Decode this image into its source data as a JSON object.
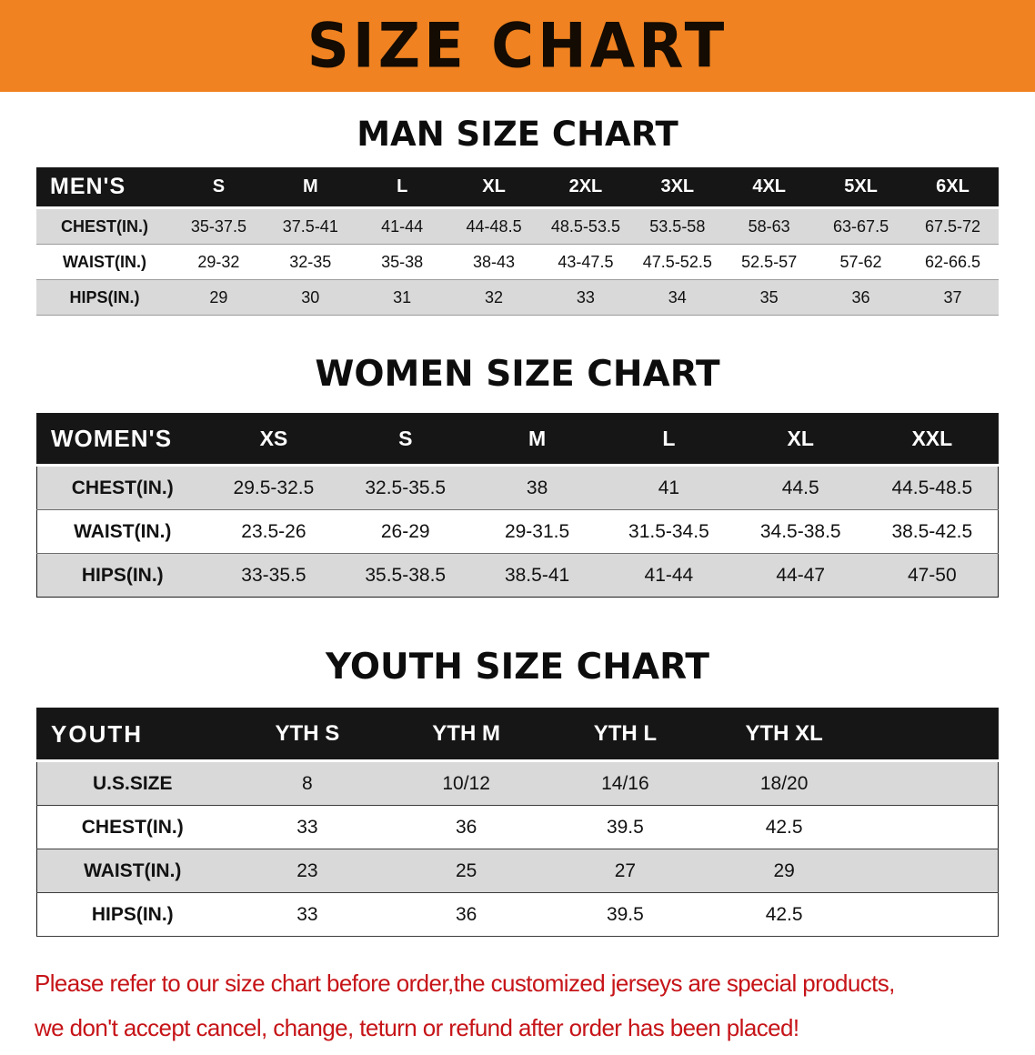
{
  "banner": {
    "title": "SIZE CHART"
  },
  "chart_data": [
    {
      "type": "table",
      "title": "MAN SIZE CHART",
      "corner_label": "MEN'S",
      "columns": [
        "S",
        "M",
        "L",
        "XL",
        "2XL",
        "3XL",
        "4XL",
        "5XL",
        "6XL"
      ],
      "rows": [
        {
          "label": "CHEST(IN.)",
          "values": [
            "35-37.5",
            "37.5-41",
            "41-44",
            "44-48.5",
            "48.5-53.5",
            "53.5-58",
            "58-63",
            "63-67.5",
            "67.5-72"
          ]
        },
        {
          "label": "WAIST(IN.)",
          "values": [
            "29-32",
            "32-35",
            "35-38",
            "38-43",
            "43-47.5",
            "47.5-52.5",
            "52.5-57",
            "57-62",
            "62-66.5"
          ]
        },
        {
          "label": "HIPS(IN.)",
          "values": [
            "29",
            "30",
            "31",
            "32",
            "33",
            "34",
            "35",
            "36",
            "37"
          ]
        }
      ]
    },
    {
      "type": "table",
      "title": "WOMEN SIZE CHART",
      "corner_label": "WOMEN'S",
      "columns": [
        "XS",
        "S",
        "M",
        "L",
        "XL",
        "XXL"
      ],
      "rows": [
        {
          "label": "CHEST(IN.)",
          "values": [
            "29.5-32.5",
            "32.5-35.5",
            "38",
            "41",
            "44.5",
            "44.5-48.5"
          ]
        },
        {
          "label": "WAIST(IN.)",
          "values": [
            "23.5-26",
            "26-29",
            "29-31.5",
            "31.5-34.5",
            "34.5-38.5",
            "38.5-42.5"
          ]
        },
        {
          "label": "HIPS(IN.)",
          "values": [
            "33-35.5",
            "35.5-38.5",
            "38.5-41",
            "41-44",
            "44-47",
            "47-50"
          ]
        }
      ]
    },
    {
      "type": "table",
      "title": "YOUTH SIZE CHART",
      "corner_label": "YOUTH",
      "columns": [
        "YTH S",
        "YTH M",
        "YTH L",
        "YTH XL"
      ],
      "rows": [
        {
          "label": "U.S.SIZE",
          "values": [
            "8",
            "10/12",
            "14/16",
            "18/20"
          ]
        },
        {
          "label": "CHEST(IN.)",
          "values": [
            "33",
            "36",
            "39.5",
            "42.5"
          ]
        },
        {
          "label": "WAIST(IN.)",
          "values": [
            "23",
            "25",
            "27",
            "29"
          ]
        },
        {
          "label": "HIPS(IN.)",
          "values": [
            "33",
            "36",
            "39.5",
            "42.5"
          ]
        }
      ]
    }
  ],
  "footer": {
    "lines": [
      "Please refer to our size chart before order,the customized jerseys are special products,",
      "we don't accept cancel, change, teturn or refund after order has been placed!"
    ]
  },
  "colors": {
    "banner_bg": "#f08221",
    "table_header_bg": "#161616",
    "row_stripe": "#d9d9d9",
    "footer_text": "#c61418"
  }
}
